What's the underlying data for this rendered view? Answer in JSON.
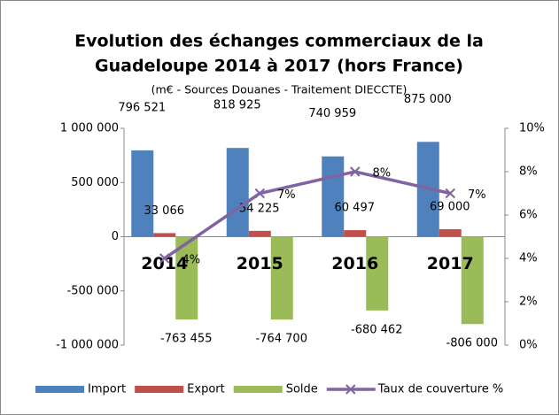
{
  "chart_data": {
    "type": "bar",
    "title": [
      "Evolution des échanges commerciaux de la",
      "Guadeloupe 2014 à 2017 (hors France)"
    ],
    "subtitle": "(m€ - Sources Douanes - Traitement DIECCTE)",
    "categories": [
      "2014",
      "2015",
      "2016",
      "2017"
    ],
    "series": [
      {
        "name": "Import",
        "color": "#4f81bd",
        "values": [
          796521,
          818925,
          740959,
          875000
        ],
        "value_labels": [
          "796 521",
          "818 925",
          "740 959",
          "875 000"
        ]
      },
      {
        "name": "Export",
        "color": "#c0504d",
        "values": [
          33066,
          54225,
          60497,
          69000
        ],
        "value_labels": [
          "33 066",
          "54 225",
          "60 497",
          "69 000"
        ]
      },
      {
        "name": "Solde",
        "color": "#9bbb59",
        "values": [
          -763455,
          -764700,
          -680462,
          -806000
        ],
        "value_labels": [
          "-763 455",
          "-764 700",
          "-680 462",
          "-806 000"
        ]
      },
      {
        "name": "Taux de couverture %",
        "color": "#8064a2",
        "type": "line",
        "axis": "y2",
        "values": [
          4,
          7,
          8,
          7
        ],
        "value_labels": [
          "4%",
          "7%",
          "8%",
          "7%"
        ]
      }
    ],
    "ylim": [
      -1000000,
      1000000
    ],
    "yticks": [
      {
        "value": -1000000,
        "label": "-1 000 000"
      },
      {
        "value": -500000,
        "label": "-500 000"
      },
      0,
      {
        "value": 500000,
        "label": "500 000"
      },
      {
        "value": 1000000,
        "label": "1 000 000"
      }
    ],
    "y2lim": [
      0,
      10
    ],
    "y2ticks": [
      {
        "value": 0,
        "label": "0%"
      },
      {
        "value": 2,
        "label": "2%"
      },
      {
        "value": 4,
        "label": "4%"
      },
      {
        "value": 6,
        "label": "6%"
      },
      {
        "value": 8,
        "label": "8%"
      },
      {
        "value": 10,
        "label": "10%"
      }
    ],
    "grid": false,
    "legend": "bottom"
  }
}
